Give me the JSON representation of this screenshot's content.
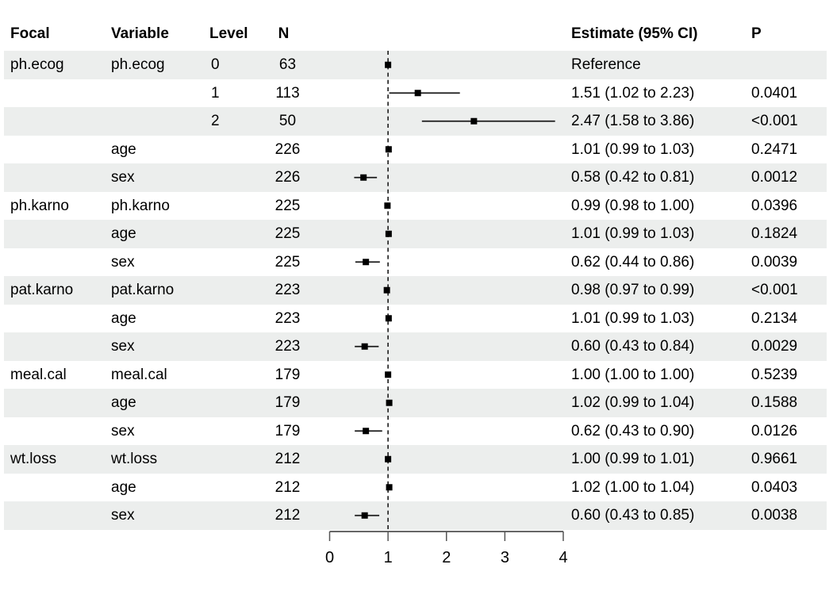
{
  "chart_data": {
    "type": "forest",
    "title": "",
    "columns": {
      "focal": "Focal",
      "variable": "Variable",
      "level": "Level",
      "n": "N",
      "estimate": "Estimate (95% CI)",
      "p": "P"
    },
    "axis": {
      "range": [
        0,
        4
      ],
      "ticks": [
        0,
        1,
        2,
        3,
        4
      ],
      "tick_labels": [
        "0",
        "1",
        "2",
        "3",
        "4"
      ],
      "reference_value": 1,
      "grid": false
    },
    "rows": [
      {
        "focal": "ph.ecog",
        "variable": "ph.ecog",
        "level": "0",
        "n": "63",
        "estimate_label": "Reference",
        "p": "",
        "est": 1.0,
        "lo": null,
        "hi": null,
        "reference": true
      },
      {
        "focal": "",
        "variable": "",
        "level": "1",
        "n": "113",
        "estimate_label": "1.51 (1.02 to 2.23)",
        "p": "0.0401",
        "est": 1.51,
        "lo": 1.02,
        "hi": 2.23,
        "reference": false
      },
      {
        "focal": "",
        "variable": "",
        "level": "2",
        "n": "50",
        "estimate_label": "2.47 (1.58 to 3.86)",
        "p": "<0.001",
        "est": 2.47,
        "lo": 1.58,
        "hi": 3.86,
        "reference": false
      },
      {
        "focal": "",
        "variable": "age",
        "level": "",
        "n": "226",
        "estimate_label": "1.01 (0.99 to 1.03)",
        "p": "0.2471",
        "est": 1.01,
        "lo": 0.99,
        "hi": 1.03,
        "reference": false
      },
      {
        "focal": "",
        "variable": "sex",
        "level": "",
        "n": "226",
        "estimate_label": "0.58 (0.42 to 0.81)",
        "p": "0.0012",
        "est": 0.58,
        "lo": 0.42,
        "hi": 0.81,
        "reference": false
      },
      {
        "focal": "ph.karno",
        "variable": "ph.karno",
        "level": "",
        "n": "225",
        "estimate_label": "0.99 (0.98 to 1.00)",
        "p": "0.0396",
        "est": 0.99,
        "lo": 0.98,
        "hi": 1.0,
        "reference": false
      },
      {
        "focal": "",
        "variable": "age",
        "level": "",
        "n": "225",
        "estimate_label": "1.01 (0.99 to 1.03)",
        "p": "0.1824",
        "est": 1.01,
        "lo": 0.99,
        "hi": 1.03,
        "reference": false
      },
      {
        "focal": "",
        "variable": "sex",
        "level": "",
        "n": "225",
        "estimate_label": "0.62 (0.44 to 0.86)",
        "p": "0.0039",
        "est": 0.62,
        "lo": 0.44,
        "hi": 0.86,
        "reference": false
      },
      {
        "focal": "pat.karno",
        "variable": "pat.karno",
        "level": "",
        "n": "223",
        "estimate_label": "0.98 (0.97 to 0.99)",
        "p": "<0.001",
        "est": 0.98,
        "lo": 0.97,
        "hi": 0.99,
        "reference": false
      },
      {
        "focal": "",
        "variable": "age",
        "level": "",
        "n": "223",
        "estimate_label": "1.01 (0.99 to 1.03)",
        "p": "0.2134",
        "est": 1.01,
        "lo": 0.99,
        "hi": 1.03,
        "reference": false
      },
      {
        "focal": "",
        "variable": "sex",
        "level": "",
        "n": "223",
        "estimate_label": "0.60 (0.43 to 0.84)",
        "p": "0.0029",
        "est": 0.6,
        "lo": 0.43,
        "hi": 0.84,
        "reference": false
      },
      {
        "focal": "meal.cal",
        "variable": "meal.cal",
        "level": "",
        "n": "179",
        "estimate_label": "1.00 (1.00 to 1.00)",
        "p": "0.5239",
        "est": 1.0,
        "lo": 1.0,
        "hi": 1.0,
        "reference": false
      },
      {
        "focal": "",
        "variable": "age",
        "level": "",
        "n": "179",
        "estimate_label": "1.02 (0.99 to 1.04)",
        "p": "0.1588",
        "est": 1.02,
        "lo": 0.99,
        "hi": 1.04,
        "reference": false
      },
      {
        "focal": "",
        "variable": "sex",
        "level": "",
        "n": "179",
        "estimate_label": "0.62 (0.43 to 0.90)",
        "p": "0.0126",
        "est": 0.62,
        "lo": 0.43,
        "hi": 0.9,
        "reference": false
      },
      {
        "focal": "wt.loss",
        "variable": "wt.loss",
        "level": "",
        "n": "212",
        "estimate_label": "1.00 (0.99 to 1.01)",
        "p": "0.9661",
        "est": 1.0,
        "lo": 0.99,
        "hi": 1.01,
        "reference": false
      },
      {
        "focal": "",
        "variable": "age",
        "level": "",
        "n": "212",
        "estimate_label": "1.02 (1.00 to 1.04)",
        "p": "0.0403",
        "est": 1.02,
        "lo": 1.0,
        "hi": 1.04,
        "reference": false
      },
      {
        "focal": "",
        "variable": "sex",
        "level": "",
        "n": "212",
        "estimate_label": "0.60 (0.43 to 0.85)",
        "p": "0.0038",
        "est": 0.6,
        "lo": 0.43,
        "hi": 0.85,
        "reference": false
      }
    ],
    "legend": null
  },
  "colors": {
    "stripe": "#ECEEED",
    "background": "#FFFFFF",
    "marker": "#000000",
    "ci_line": "#1A1A1A",
    "reference_line": "#1A1A1A",
    "axis_line": "#333333",
    "tick": "#555555",
    "text": "#000000"
  }
}
